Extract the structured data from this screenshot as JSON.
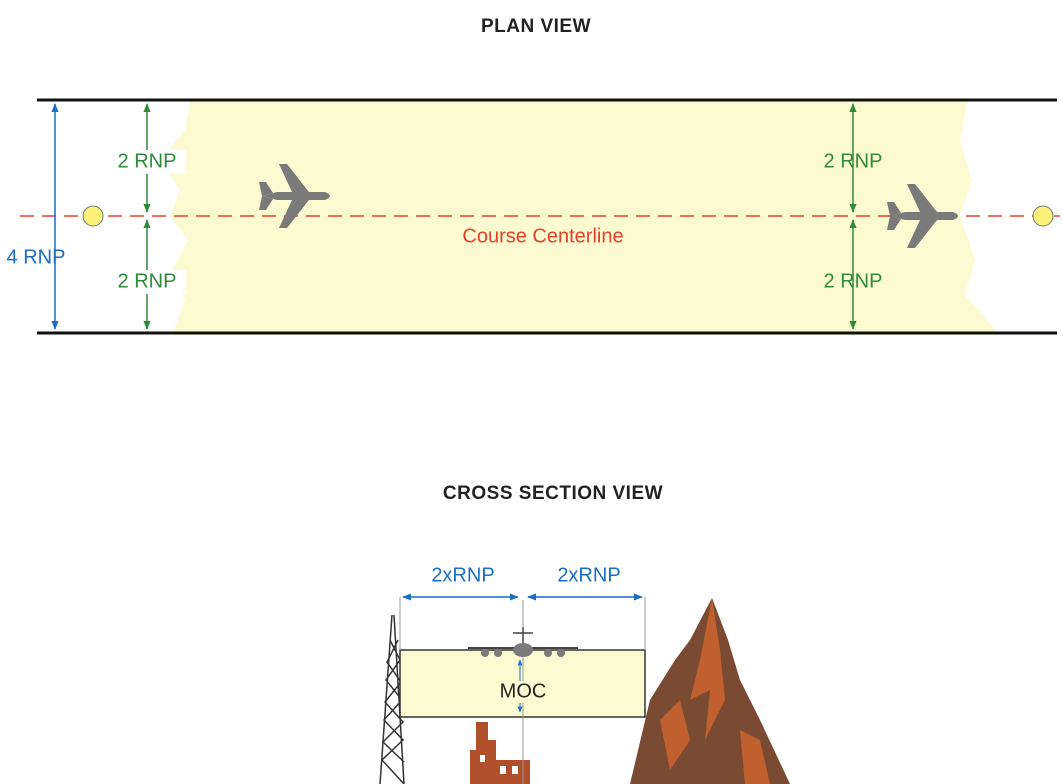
{
  "plan_view": {
    "title": "PLAN VIEW",
    "half_width_labels": [
      "2 RNP",
      "2 RNP",
      "2 RNP",
      "2 RNP"
    ],
    "total_width_label": "4 RNP",
    "centerline_label": "Course Centerline"
  },
  "cross_section_view": {
    "title": "CROSS SECTION VIEW",
    "width_labels": [
      "2xRNP",
      "2xRNP"
    ],
    "clearance_label": "MOC"
  }
}
